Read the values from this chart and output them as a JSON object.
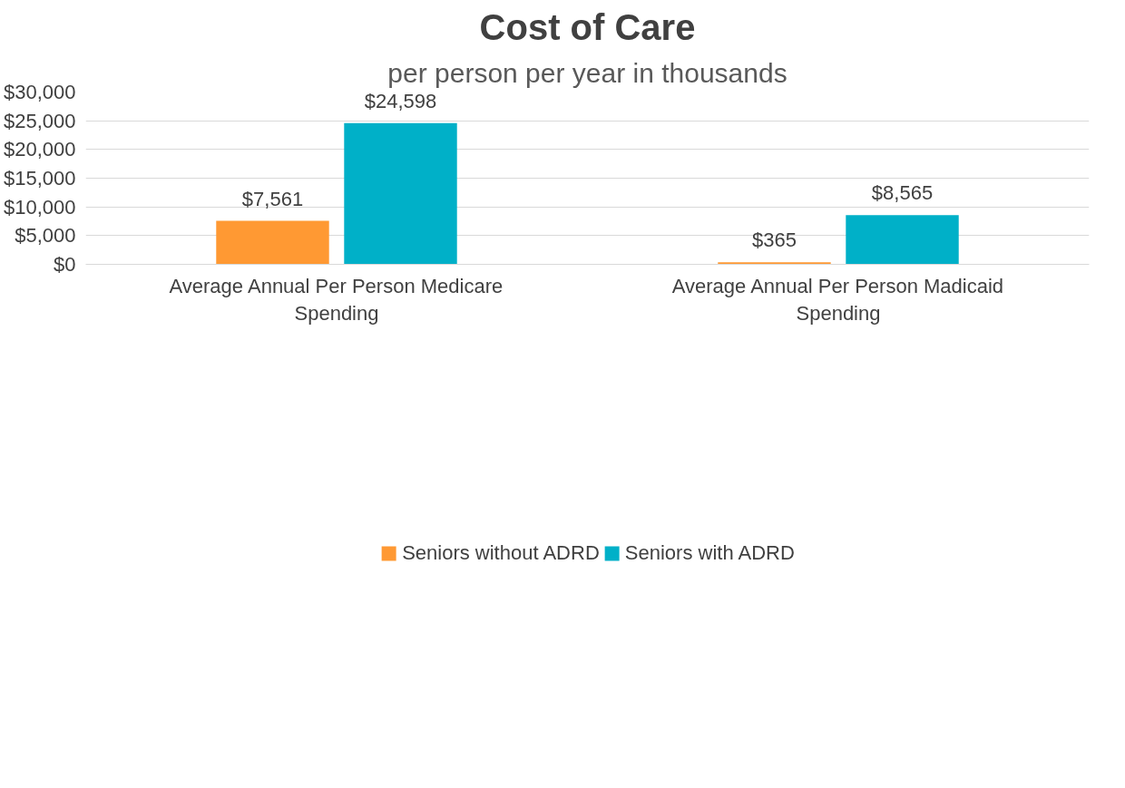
{
  "chart_data": {
    "type": "bar",
    "title": "Cost of Care",
    "subtitle": "per person per year in thousands",
    "categories": [
      "Average Annual Per Person Medicare Spending",
      "Average Annual Per Person Madicaid Spending"
    ],
    "series": [
      {
        "name": "Seniors without ADRD",
        "color": "#ff9933",
        "values": [
          7561,
          365
        ],
        "value_labels": [
          "$7,561",
          "$365"
        ]
      },
      {
        "name": "Seniors with ADRD",
        "color": "#00b0c8",
        "values": [
          24598,
          8565
        ],
        "value_labels": [
          "$24,598",
          "$8,565"
        ]
      }
    ],
    "ylim": [
      0,
      30000
    ],
    "yticks": [
      {
        "value": 0,
        "label": "$0"
      },
      {
        "value": 5000,
        "label": "$5,000"
      },
      {
        "value": 10000,
        "label": "$10,000"
      },
      {
        "value": 15000,
        "label": "$15,000"
      },
      {
        "value": 20000,
        "label": "$20,000"
      },
      {
        "value": 25000,
        "label": "$25,000"
      },
      {
        "value": 30000,
        "label": "$30,000"
      }
    ],
    "grid": "y",
    "legend": "bottom"
  }
}
